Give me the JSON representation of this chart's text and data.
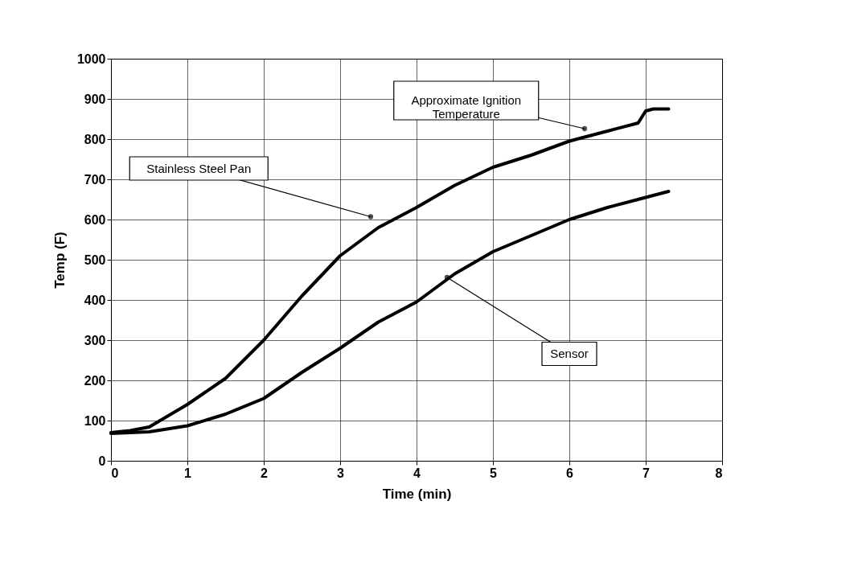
{
  "chart_data": {
    "type": "line",
    "xlabel": "Time (min)",
    "ylabel": "Temp (F)",
    "xlim": [
      0,
      8
    ],
    "xticks": [
      0,
      1,
      2,
      3,
      4,
      5,
      6,
      7,
      8
    ],
    "ylim": [
      0,
      1000
    ],
    "yticks": [
      0,
      100,
      200,
      300,
      400,
      500,
      600,
      700,
      800,
      900,
      1000
    ],
    "grid": true,
    "legend": false,
    "marker": "none",
    "line_style": "solid",
    "series": [
      {
        "color": "#000000",
        "x": [
          0,
          0.25,
          0.5,
          1,
          1.5,
          2,
          2.5,
          3,
          3.5,
          4,
          4.5,
          5,
          5.5,
          6,
          6.5,
          6.9,
          7,
          7.1,
          7.3
        ],
        "values": [
          70,
          75,
          84,
          140,
          205,
          300,
          410,
          510,
          580,
          630,
          685,
          730,
          760,
          795,
          820,
          840,
          870,
          875,
          875
        ]
      },
      {
        "color": "#000000",
        "x": [
          0,
          0.5,
          1,
          1.5,
          2,
          2.5,
          3,
          3.5,
          4,
          4.5,
          5,
          5.5,
          6,
          6.5,
          7,
          7.3
        ],
        "values": [
          68,
          72,
          87,
          116,
          155,
          220,
          280,
          345,
          395,
          465,
          520,
          560,
          600,
          630,
          655,
          670
        ]
      }
    ],
    "annotations": [
      {
        "text": "Approximate Ignition Temperature",
        "x": 6.2,
        "y": 826
      },
      {
        "text": "Stainless Steel Pan",
        "x": 3.4,
        "y": 607
      },
      {
        "text": "Sensor",
        "x": 4.4,
        "y": 456
      }
    ]
  }
}
